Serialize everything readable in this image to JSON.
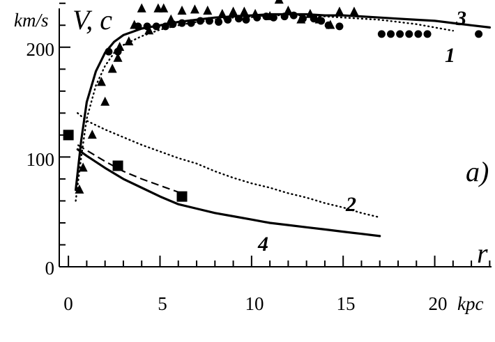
{
  "chart_data": {
    "type": "line",
    "ylabel_unit": "km/s",
    "ylabel": "V, c",
    "xlabel": "r",
    "xlabel_unit": "kpc",
    "panel_label": "a)",
    "xlim": [
      -0.5,
      23.1
    ],
    "ylim": [
      0,
      243
    ],
    "x_ticks": [
      "0",
      "5",
      "10",
      "15",
      "20"
    ],
    "y_ticks": [
      "0",
      "100",
      "200"
    ],
    "series": [
      {
        "name": "1",
        "style": "dotted",
        "x": [
          0.4,
          0.7,
          1.0,
          1.5,
          2.0,
          2.5,
          3.0,
          4.0,
          5.0,
          6.0,
          7.0,
          8.0,
          9.0,
          10.0,
          11.0,
          12.0,
          13.0,
          14.0,
          15.0,
          16.0,
          17.0,
          18.0,
          19.0,
          20.0,
          21.0
        ],
        "y": [
          60,
          100,
          135,
          165,
          183,
          195,
          202,
          210,
          216,
          220,
          223,
          225,
          227,
          228,
          229,
          229,
          229,
          228,
          227,
          226,
          225,
          223,
          221,
          218,
          215
        ]
      },
      {
        "name": "2",
        "style": "dotted",
        "x": [
          0.5,
          1,
          2,
          3,
          4,
          5,
          6,
          7,
          8,
          9,
          10,
          11,
          12,
          13,
          14,
          15,
          16,
          17
        ],
        "y": [
          140,
          133,
          125,
          118,
          111,
          105,
          99,
          94,
          87,
          81,
          76,
          72,
          67,
          63,
          58,
          54,
          49,
          45
        ]
      },
      {
        "name": "3",
        "style": "solid",
        "x": [
          0.4,
          0.7,
          1.0,
          1.5,
          2.0,
          2.5,
          3.0,
          4.0,
          5.0,
          6.0,
          7.0,
          8.0,
          9.0,
          10.0,
          11.0,
          12.0,
          13.0,
          14.0,
          15.0,
          16.0,
          17.0,
          18.0,
          19.0,
          20.0,
          21.0,
          22.0,
          23.0
        ],
        "y": [
          70,
          115,
          150,
          178,
          195,
          205,
          211,
          217,
          220,
          223,
          225,
          227,
          228,
          229,
          230,
          230,
          230,
          229,
          229,
          228,
          227,
          226,
          225,
          224,
          222,
          220,
          218
        ]
      },
      {
        "name": "4",
        "style": "solid",
        "x": [
          0.5,
          1,
          2,
          3,
          4,
          5,
          6,
          7,
          8,
          9,
          10,
          11,
          12,
          13,
          14,
          15,
          16,
          17
        ],
        "y": [
          107,
          101,
          90,
          80,
          72,
          64,
          57,
          53,
          49,
          46,
          43,
          40,
          38,
          36,
          34,
          32,
          30,
          28
        ]
      },
      {
        "style": "dashed",
        "x": [
          0.5,
          1,
          2,
          3,
          4,
          5,
          6,
          6.2
        ],
        "y": [
          111,
          106,
          96,
          87,
          80,
          74,
          68,
          66
        ]
      }
    ],
    "points": [
      {
        "marker": "circle",
        "x": [
          2.2,
          2.7,
          3.8,
          4.3,
          4.8,
          5.3,
          5.7,
          6.2,
          6.7,
          7.2,
          7.7,
          8.2,
          8.7,
          9.3,
          9.7,
          10.3,
          10.8,
          11.2,
          11.8,
          12.3,
          12.8,
          13.4,
          13.8,
          14.2,
          14.8,
          17.1,
          17.6,
          18.1,
          18.6,
          19.1,
          19.6,
          22.4
        ],
        "y": [
          196,
          196,
          219,
          219,
          219,
          219,
          221,
          222,
          222,
          224,
          224,
          223,
          225,
          226,
          225,
          227,
          228,
          227,
          228,
          229,
          226,
          226,
          224,
          220,
          219,
          212,
          212,
          212,
          212,
          212,
          212,
          212
        ]
      },
      {
        "marker": "triangle",
        "x": [
          0.6,
          0.8,
          1.3,
          1.8,
          2.0,
          2.4,
          2.7,
          2.8,
          3.3,
          3.6,
          4.0,
          4.4,
          4.9,
          5.2,
          5.6,
          6.2,
          6.9,
          7.6,
          8.4,
          9.0,
          9.6,
          10.2,
          11.0,
          11.5,
          12.0,
          12.7,
          13.2,
          13.7,
          14.3,
          14.8,
          15.6
        ],
        "y": [
          70,
          90,
          120,
          168,
          150,
          180,
          190,
          200,
          205,
          220,
          235,
          215,
          235,
          235,
          225,
          233,
          234,
          233,
          230,
          232,
          232,
          230,
          228,
          243,
          233,
          225,
          230,
          225,
          220,
          232,
          232
        ]
      },
      {
        "marker": "square",
        "x": [
          0.0,
          2.7,
          6.2
        ],
        "y": [
          120,
          92,
          64
        ]
      }
    ]
  }
}
